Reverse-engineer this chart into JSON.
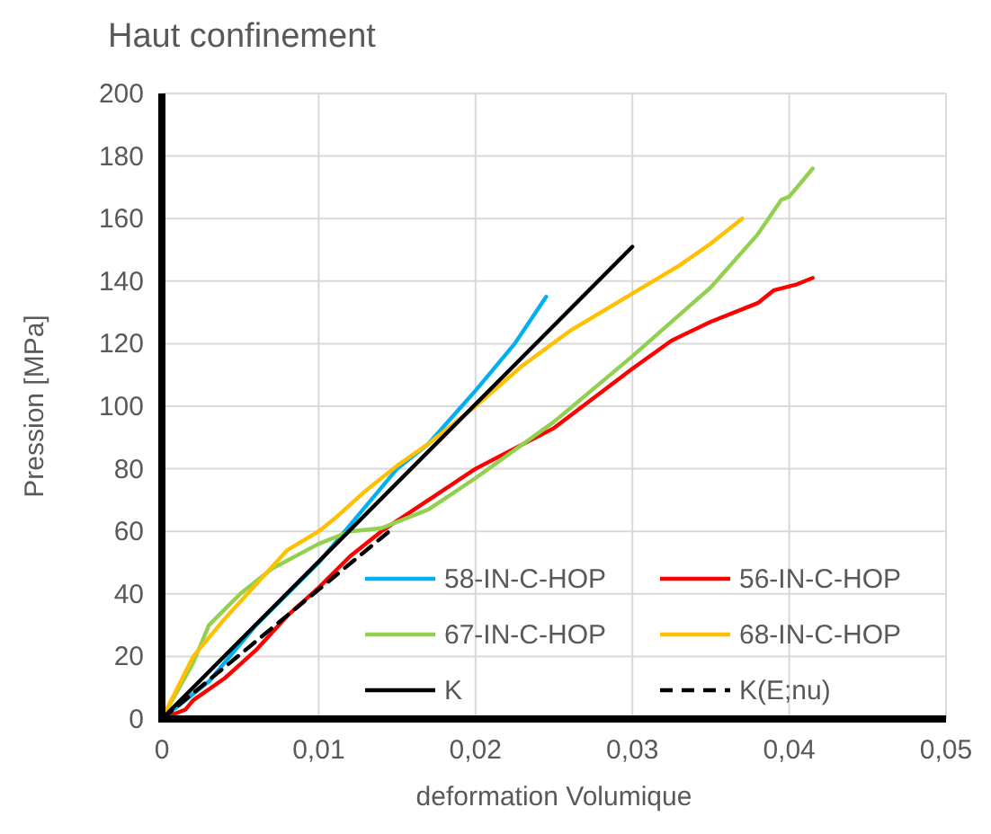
{
  "chart_data": {
    "type": "line",
    "title": "Haut confinement",
    "xlabel": "deformation Volumique",
    "ylabel": "Pression [MPa]",
    "xlim": [
      0,
      0.05
    ],
    "xticks": [
      0,
      {
        "value": 0.01,
        "label": "0,01"
      },
      {
        "value": 0.02,
        "label": "0,02"
      },
      {
        "value": 0.03,
        "label": "0,03"
      },
      {
        "value": 0.04,
        "label": "0,04"
      },
      {
        "value": 0.05,
        "label": "0,05"
      }
    ],
    "ylim": [
      0,
      200
    ],
    "yticks": [
      0,
      20,
      40,
      60,
      80,
      100,
      120,
      140,
      160,
      180,
      200
    ],
    "grid": true,
    "legend": "bottom",
    "series": [
      {
        "name": "58-IN-C-HOP",
        "color": "#00b0f0",
        "line_style": "solid",
        "x": [
          0,
          0.003,
          0.006,
          0.01,
          0.013,
          0.015,
          0.017,
          0.02,
          0.0225,
          0.0245
        ],
        "values": [
          0,
          12,
          30,
          50,
          68,
          80,
          88,
          105,
          120,
          135
        ]
      },
      {
        "name": "56-IN-C-HOP",
        "color": "#ff0000",
        "line_style": "solid",
        "x": [
          0,
          0.0015,
          0.002,
          0.004,
          0.006,
          0.008,
          0.01,
          0.012,
          0.014,
          0.017,
          0.02,
          0.025,
          0.03,
          0.0325,
          0.035,
          0.037,
          0.038,
          0.039,
          0.0405,
          0.0415
        ],
        "values": [
          0,
          3,
          6,
          13,
          22,
          33,
          42,
          52,
          60,
          70,
          80,
          93,
          112,
          121,
          127,
          131,
          133,
          137,
          139,
          141
        ]
      },
      {
        "name": "67-IN-C-HOP",
        "color": "#92d050",
        "line_style": "solid",
        "x": [
          0,
          0.002,
          0.003,
          0.005,
          0.007,
          0.01,
          0.012,
          0.014,
          0.017,
          0.02,
          0.025,
          0.03,
          0.035,
          0.038,
          0.0395,
          0.04,
          0.0415
        ],
        "values": [
          0,
          18,
          30,
          40,
          48,
          56,
          60,
          61,
          67,
          77,
          95,
          116,
          138,
          155,
          166,
          167,
          176
        ]
      },
      {
        "name": "68-IN-C-HOP",
        "color": "#ffc000",
        "line_style": "solid",
        "x": [
          0,
          0.001,
          0.002,
          0.004,
          0.006,
          0.008,
          0.01,
          0.011,
          0.013,
          0.015,
          0.017,
          0.02,
          0.023,
          0.026,
          0.03,
          0.033,
          0.035,
          0.037
        ],
        "values": [
          0,
          10,
          20,
          32,
          43,
          54,
          60,
          64,
          73,
          81,
          88,
          100,
          113,
          124,
          136,
          145,
          152,
          160
        ]
      },
      {
        "name": "K",
        "color": "#000000",
        "line_style": "solid",
        "x": [
          0,
          0.03
        ],
        "values": [
          0,
          151
        ]
      },
      {
        "name": "K(E;nu)",
        "color": "#000000",
        "line_style": "dashed",
        "x": [
          0,
          0.0145
        ],
        "values": [
          0,
          60
        ]
      }
    ]
  }
}
